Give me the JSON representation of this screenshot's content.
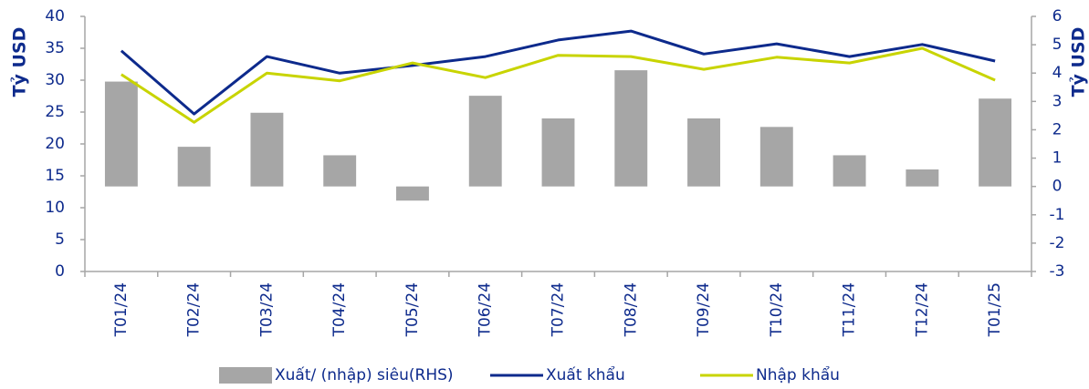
{
  "chart_data": {
    "type": "combo",
    "ylabel": "Tỷ USD",
    "y2label": "Tỷ USD",
    "categories": [
      "T01/24",
      "T02/24",
      "T03/24",
      "T04/24",
      "T05/24",
      "T06/24",
      "T07/24",
      "T08/24",
      "T09/24",
      "T10/24",
      "T11/24",
      "T12/24",
      "T01/25"
    ],
    "series": [
      {
        "name": "Xuất/ (nhập) siêu(RHS)",
        "type": "bar",
        "axis": "y2",
        "color": "#a6a6a6",
        "values": [
          3.7,
          1.4,
          2.6,
          1.1,
          -0.5,
          3.2,
          2.4,
          4.1,
          2.4,
          2.1,
          1.1,
          0.6,
          3.1
        ]
      },
      {
        "name": "Xuất khẩu",
        "type": "line",
        "color": "#0d2a8c",
        "values": [
          34.6,
          24.7,
          33.7,
          31.1,
          32.3,
          33.7,
          36.3,
          37.7,
          34.1,
          35.7,
          33.7,
          35.6,
          33.0
        ]
      },
      {
        "name": "Nhập khẩu",
        "type": "line",
        "color": "#c8d400",
        "values": [
          30.9,
          23.4,
          31.1,
          29.9,
          32.7,
          30.4,
          33.9,
          33.7,
          31.7,
          33.6,
          32.7,
          35.0,
          30.0
        ]
      }
    ],
    "ylim": [
      0,
      40
    ],
    "yticks": [
      0,
      5,
      10,
      15,
      20,
      25,
      30,
      35,
      40
    ],
    "y2lim": [
      -3,
      6
    ],
    "y2ticks": [
      -3,
      -2,
      -1,
      0,
      1,
      2,
      3,
      4,
      5,
      6
    ],
    "grid": false,
    "legend": "bottom"
  }
}
